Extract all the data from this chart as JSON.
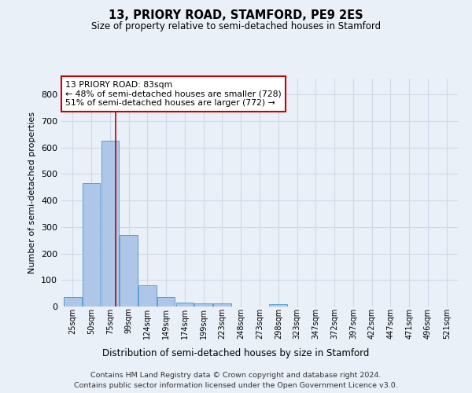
{
  "title": "13, PRIORY ROAD, STAMFORD, PE9 2ES",
  "subtitle": "Size of property relative to semi-detached houses in Stamford",
  "xlabel": "Distribution of semi-detached houses by size in Stamford",
  "ylabel": "Number of semi-detached properties",
  "bar_labels": [
    "25sqm",
    "50sqm",
    "75sqm",
    "99sqm",
    "124sqm",
    "149sqm",
    "174sqm",
    "199sqm",
    "223sqm",
    "248sqm",
    "273sqm",
    "298sqm",
    "323sqm",
    "347sqm",
    "372sqm",
    "397sqm",
    "422sqm",
    "447sqm",
    "471sqm",
    "496sqm",
    "521sqm"
  ],
  "bar_values": [
    35,
    465,
    625,
    270,
    80,
    35,
    15,
    12,
    12,
    0,
    0,
    8,
    0,
    0,
    0,
    0,
    0,
    0,
    0,
    0,
    0
  ],
  "bar_color": "#aec6e8",
  "bar_edgecolor": "#5a9fd4",
  "grid_color": "#d0d8e8",
  "background_color": "#eaf0f8",
  "red_line_x": 2.32,
  "annotation_line1": "13 PRIORY ROAD: 83sqm",
  "annotation_line2": "← 48% of semi-detached houses are smaller (728)",
  "annotation_line3": "51% of semi-detached houses are larger (772) →",
  "annotation_box_color": "white",
  "annotation_box_edgecolor": "#cc0000",
  "footer_line1": "Contains HM Land Registry data © Crown copyright and database right 2024.",
  "footer_line2": "Contains public sector information licensed under the Open Government Licence v3.0.",
  "ylim": [
    0,
    860
  ],
  "yticks": [
    0,
    100,
    200,
    300,
    400,
    500,
    600,
    700,
    800
  ]
}
